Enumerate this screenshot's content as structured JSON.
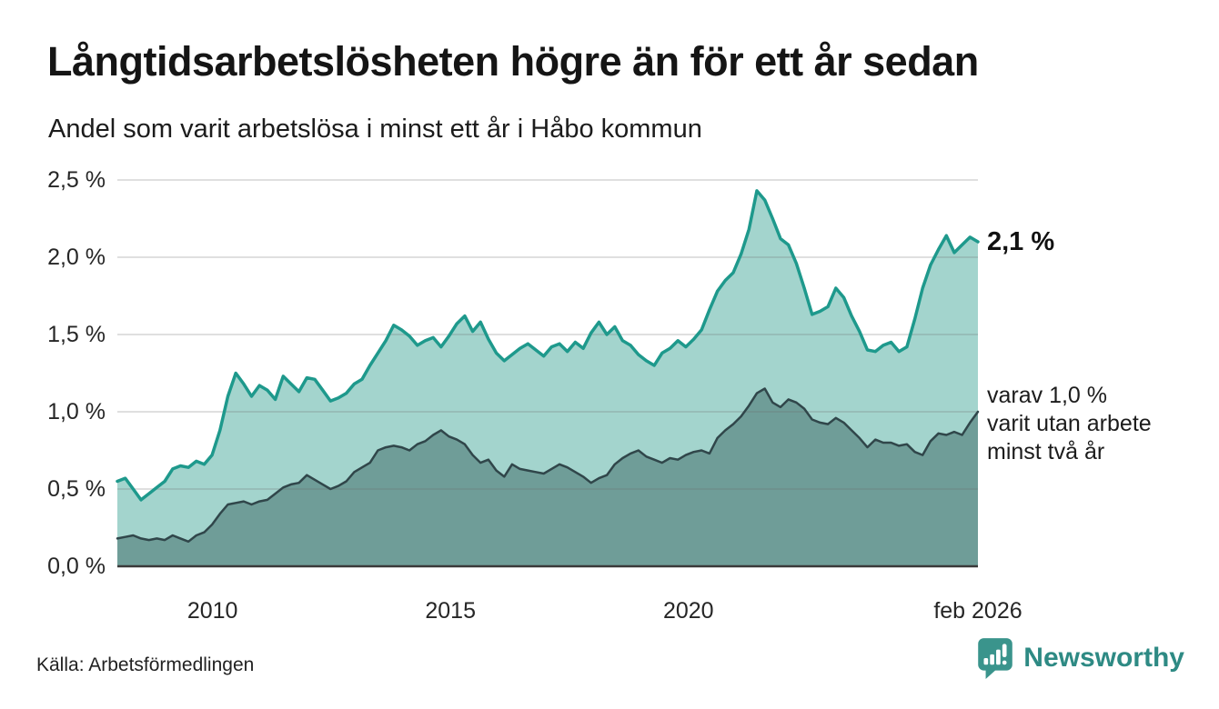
{
  "header": {
    "title": "Långtidsarbetslösheten högre än för ett år sedan",
    "subtitle": "Andel som varit arbetslösa i minst ett år i Håbo kommun"
  },
  "chart_data": {
    "type": "area",
    "title": "Långtidsarbetslösheten högre än för ett år sedan",
    "subtitle": "Andel som varit arbetslösa i minst ett år i Håbo kommun",
    "x_start": 2008.0,
    "x_end": 2026.083,
    "ylim": [
      0,
      2.5
    ],
    "grid": true,
    "y_ticks": [
      0,
      0.5,
      1.0,
      1.5,
      2.0,
      2.5
    ],
    "y_tick_labels": [
      "0,0 %",
      "0,5 %",
      "1,0 %",
      "1,5 %",
      "2,0 %",
      "2,5 %"
    ],
    "x_ticks": [
      2010,
      2015,
      2020,
      2026.083
    ],
    "x_tick_labels": [
      "2010",
      "2015",
      "2020",
      "feb 2026"
    ],
    "series": [
      {
        "name": "Andel arbetslösa minst ett år",
        "latest_value": 2.1,
        "line_color": "#1e998c",
        "fill_color": "#a3d4cd",
        "line_width": 3.5,
        "values": [
          0.55,
          0.57,
          0.5,
          0.43,
          0.47,
          0.51,
          0.55,
          0.63,
          0.65,
          0.64,
          0.68,
          0.66,
          0.72,
          0.88,
          1.1,
          1.25,
          1.18,
          1.1,
          1.17,
          1.14,
          1.08,
          1.23,
          1.18,
          1.13,
          1.22,
          1.21,
          1.14,
          1.07,
          1.09,
          1.12,
          1.18,
          1.21,
          1.3,
          1.38,
          1.46,
          1.56,
          1.53,
          1.49,
          1.43,
          1.46,
          1.48,
          1.42,
          1.49,
          1.57,
          1.62,
          1.52,
          1.58,
          1.47,
          1.38,
          1.33,
          1.37,
          1.41,
          1.44,
          1.4,
          1.36,
          1.42,
          1.44,
          1.39,
          1.45,
          1.41,
          1.51,
          1.58,
          1.5,
          1.55,
          1.46,
          1.43,
          1.37,
          1.33,
          1.3,
          1.38,
          1.41,
          1.46,
          1.42,
          1.47,
          1.53,
          1.66,
          1.78,
          1.85,
          1.9,
          2.02,
          2.18,
          2.43,
          2.37,
          2.25,
          2.12,
          2.08,
          1.96,
          1.8,
          1.63,
          1.65,
          1.68,
          1.8,
          1.74,
          1.62,
          1.52,
          1.4,
          1.39,
          1.43,
          1.45,
          1.39,
          1.42,
          1.6,
          1.8,
          1.95,
          2.05,
          2.14,
          2.03,
          2.08,
          2.13,
          2.1
        ]
      },
      {
        "name": "Andel arbetslösa minst två år",
        "latest_value": 1.0,
        "line_color": "#30464a",
        "fill_color": "#6f9d98",
        "line_width": 2.5,
        "values": [
          0.18,
          0.19,
          0.2,
          0.18,
          0.17,
          0.18,
          0.17,
          0.2,
          0.18,
          0.16,
          0.2,
          0.22,
          0.27,
          0.34,
          0.4,
          0.41,
          0.42,
          0.4,
          0.42,
          0.43,
          0.47,
          0.51,
          0.53,
          0.54,
          0.59,
          0.56,
          0.53,
          0.5,
          0.52,
          0.55,
          0.61,
          0.64,
          0.67,
          0.75,
          0.77,
          0.78,
          0.77,
          0.75,
          0.79,
          0.81,
          0.85,
          0.88,
          0.84,
          0.82,
          0.79,
          0.72,
          0.67,
          0.69,
          0.62,
          0.58,
          0.66,
          0.63,
          0.62,
          0.61,
          0.6,
          0.63,
          0.66,
          0.64,
          0.61,
          0.58,
          0.54,
          0.57,
          0.59,
          0.66,
          0.7,
          0.73,
          0.75,
          0.71,
          0.69,
          0.67,
          0.7,
          0.69,
          0.72,
          0.74,
          0.75,
          0.73,
          0.83,
          0.88,
          0.92,
          0.97,
          1.04,
          1.12,
          1.15,
          1.06,
          1.03,
          1.08,
          1.06,
          1.02,
          0.95,
          0.93,
          0.92,
          0.96,
          0.93,
          0.88,
          0.83,
          0.77,
          0.82,
          0.8,
          0.8,
          0.78,
          0.79,
          0.74,
          0.72,
          0.81,
          0.86,
          0.85,
          0.87,
          0.85,
          0.93,
          1.0
        ]
      }
    ],
    "annotations": {
      "latest_total": "2,1 %",
      "secondary_line1": "varav 1,0 %",
      "secondary_line2": "varit utan arbete",
      "secondary_line3": "minst två år"
    },
    "legend_position": "right-annotations",
    "baseline_color": "#3a3a3a",
    "gridline_color": "rgba(110,110,110,0.22)"
  },
  "footer": {
    "source": "Källa: Arbetsförmedlingen",
    "brand": "Newsworthy",
    "brand_color": "#2e8a84",
    "brand_icon_color": "#3a948c"
  }
}
